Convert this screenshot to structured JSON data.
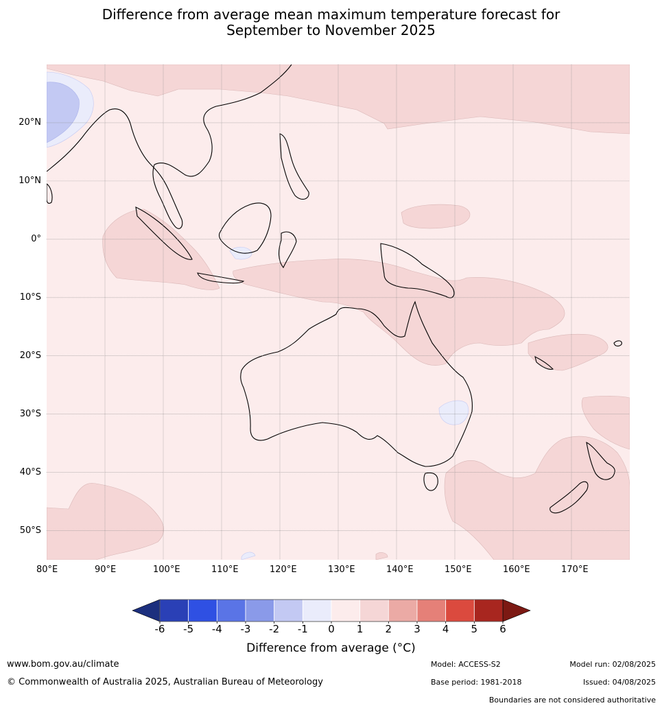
{
  "title_line1": "Difference from average mean maximum temperature forecast for",
  "title_line2": "September to November 2025",
  "map": {
    "lon_labels": [
      "80°E",
      "90°E",
      "100°E",
      "110°E",
      "120°E",
      "130°E",
      "140°E",
      "150°E",
      "160°E",
      "170°E"
    ],
    "lat_labels": [
      "20°N",
      "10°N",
      "0°",
      "10°S",
      "20°S",
      "30°S",
      "40°S",
      "50°S"
    ],
    "lon_range": [
      80,
      180
    ],
    "lat_range": [
      -55,
      30
    ]
  },
  "colorbar": {
    "ticks": [
      "-6",
      "-5",
      "-4",
      "-3",
      "-2",
      "-1",
      "0",
      "1",
      "2",
      "3",
      "4",
      "5",
      "6"
    ],
    "colors": [
      "#1c2f7e",
      "#2a40b6",
      "#2f50e3",
      "#5a74e6",
      "#8a9ae9",
      "#c3c9f3",
      "#eaecfb",
      "#fcecec",
      "#f5d6d6",
      "#ebaaa5",
      "#e58078",
      "#db4a3e",
      "#a8261f",
      "#7c1913"
    ],
    "title": "Difference from average (°C)"
  },
  "footer": {
    "website": "www.bom.gov.au/climate",
    "copyright": "© Commonwealth of Australia 2025, Australian Bureau of Meteorology",
    "model": "Model: ACCESS-S2",
    "base_period": "Base period: 1981-2018",
    "model_run": "Model run: 02/08/2025",
    "issued": "Issued: 04/08/2025",
    "disclaimer": "Boundaries are not considered authoritative"
  }
}
